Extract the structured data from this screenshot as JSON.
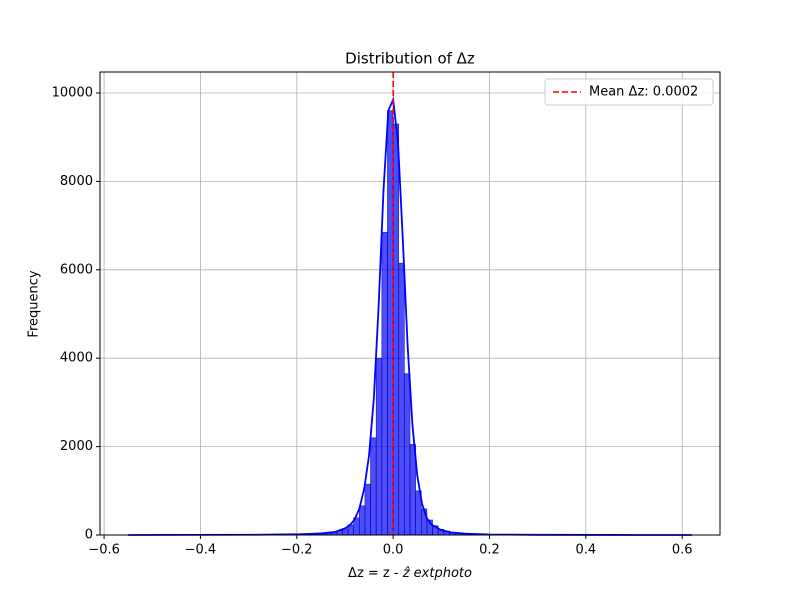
{
  "chart_data": {
    "type": "histogram",
    "title": "Distribution of Δz",
    "xlabel": [
      "Δz = z - ",
      "ẑ extphoto"
    ],
    "ylabel": "Frequency",
    "bins": [
      -0.55,
      -0.5383,
      -0.5266,
      -0.5149,
      -0.5032,
      -0.4915,
      -0.4798,
      -0.4681,
      -0.4564,
      -0.4447,
      -0.433,
      -0.4213,
      -0.4096,
      -0.3979,
      -0.3862,
      -0.3745,
      -0.3628,
      -0.3511,
      -0.3394,
      -0.3277,
      -0.316,
      -0.3043,
      -0.2926,
      -0.2809,
      -0.2692,
      -0.2575,
      -0.2458,
      -0.2341,
      -0.2224,
      -0.2107,
      -0.199,
      -0.1873,
      -0.1756,
      -0.1639,
      -0.1522,
      -0.1405,
      -0.1288,
      -0.1171,
      -0.1054,
      -0.0937,
      -0.082,
      -0.0703,
      -0.0586,
      -0.0469,
      -0.0352,
      -0.0235,
      -0.0118,
      -0.0001,
      0.0116,
      0.0233,
      0.035,
      0.0467,
      0.0584,
      0.0701,
      0.0818,
      0.0935,
      0.1052,
      0.1169,
      0.1286,
      0.1403,
      0.152,
      0.1637,
      0.1754,
      0.1871,
      0.1988,
      0.2105,
      0.2222,
      0.2339,
      0.2456,
      0.2573,
      0.269,
      0.2807,
      0.2924,
      0.3041,
      0.3158,
      0.3275,
      0.3392,
      0.3509,
      0.3626,
      0.3743,
      0.386,
      0.3977,
      0.4094,
      0.4211,
      0.4328,
      0.4445,
      0.4562,
      0.4679,
      0.4796,
      0.4913,
      0.503,
      0.5147,
      0.5264,
      0.5381,
      0.5498,
      0.5615,
      0.5732,
      0.5849,
      0.5966,
      0.6083,
      0.62
    ],
    "counts": [
      2,
      0,
      1,
      0,
      1,
      1,
      0,
      2,
      1,
      1,
      1,
      2,
      1,
      2,
      2,
      3,
      2,
      3,
      4,
      3,
      5,
      4,
      6,
      6,
      7,
      8,
      9,
      11,
      13,
      15,
      17,
      20,
      24,
      30,
      38,
      48,
      65,
      95,
      140,
      230,
      390,
      660,
      1150,
      2200,
      4000,
      6850,
      9600,
      9300,
      6150,
      3650,
      2050,
      1000,
      590,
      340,
      210,
      130,
      90,
      60,
      45,
      35,
      28,
      22,
      18,
      15,
      12,
      10,
      9,
      8,
      7,
      6,
      5,
      5,
      4,
      4,
      3,
      3,
      2,
      2,
      2,
      1,
      2,
      1,
      1,
      1,
      0,
      1,
      1,
      0,
      1,
      0,
      1,
      0,
      0,
      1,
      0,
      0,
      1,
      0,
      0,
      1
    ],
    "color": "#0000ff",
    "kde": {
      "color": "#0000ff",
      "x": [
        -0.55,
        -0.3,
        -0.2,
        -0.15,
        -0.12,
        -0.1,
        -0.09,
        -0.08,
        -0.07,
        -0.06,
        -0.05,
        -0.04,
        -0.03,
        -0.02,
        -0.01,
        0,
        0.01,
        0.02,
        0.03,
        0.04,
        0.05,
        0.06,
        0.07,
        0.08,
        0.1,
        0.12,
        0.15,
        0.2,
        0.3,
        0.45,
        0.62
      ],
      "values": [
        0,
        5,
        15,
        35,
        70,
        150,
        220,
        350,
        600,
        1050,
        1800,
        3100,
        5200,
        7800,
        9600,
        9850,
        8900,
        6700,
        4300,
        2500,
        1350,
        700,
        380,
        230,
        110,
        60,
        30,
        12,
        4,
        1,
        0
      ]
    },
    "mean": {
      "value": 0.0002,
      "label": "Mean Δz: 0.0002",
      "color": "#ff0000"
    },
    "legend": "upper right",
    "grid": true,
    "xlim": [
      -0.6085,
      0.6785
    ],
    "xticks": [
      {
        "value": -0.6,
        "label": "−0.6"
      },
      {
        "value": -0.4,
        "label": "−0.4"
      },
      {
        "value": -0.2,
        "label": "−0.2"
      },
      {
        "value": 0.0,
        "label": "0.0"
      },
      0.2,
      0.4,
      0.6
    ],
    "ylim": [
      0,
      10475
    ],
    "yticks": [
      0,
      2000,
      4000,
      6000,
      8000,
      10000
    ]
  }
}
